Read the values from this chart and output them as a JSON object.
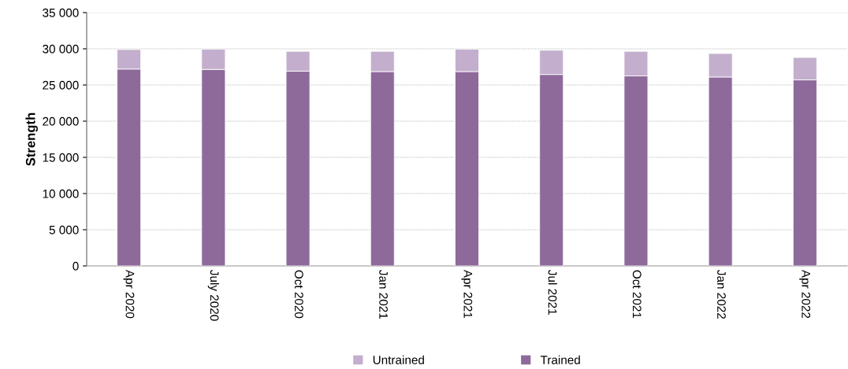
{
  "chart_data": {
    "type": "bar",
    "stacked": true,
    "ylabel": "Strength",
    "categories": [
      "Apr 2020",
      "July 2020",
      "Oct 2020",
      "Jan 2021",
      "Apr 2021",
      "Jul 2021",
      "Oct 2021",
      "Jan 2022",
      "Apr 2022"
    ],
    "series": [
      {
        "name": "Trained",
        "color": "#8e6a9b",
        "values": [
          27200,
          27150,
          26900,
          26850,
          26850,
          26450,
          26250,
          26100,
          25700
        ]
      },
      {
        "name": "Untrained",
        "color": "#c3afcd",
        "values": [
          2700,
          2800,
          2750,
          2800,
          3100,
          3350,
          3400,
          3250,
          3100
        ]
      }
    ],
    "ylim": [
      0,
      35000
    ],
    "yticks": [
      0,
      {
        "value": 5000,
        "label": "5 000"
      },
      {
        "value": 10000,
        "label": "10 000"
      },
      {
        "value": 15000,
        "label": "15 000"
      },
      {
        "value": 20000,
        "label": "20 000"
      },
      {
        "value": 25000,
        "label": "25 000"
      },
      {
        "value": 30000,
        "label": "30 000"
      },
      {
        "value": 35000,
        "label": "35 000"
      }
    ],
    "grid": "y",
    "legend": "bottom"
  }
}
